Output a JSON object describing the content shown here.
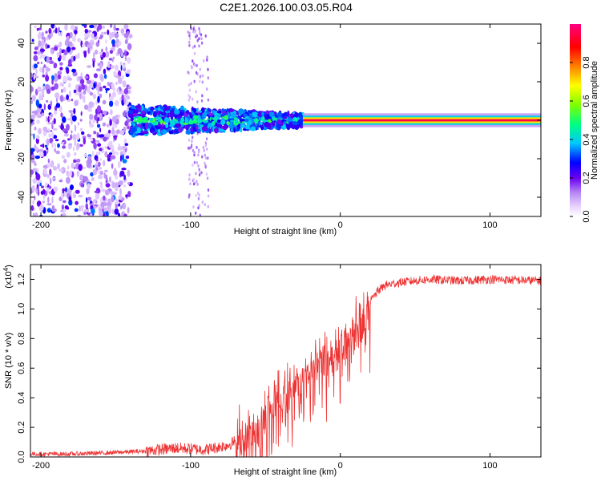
{
  "title": "C2E1.2026.100.03.05.R04",
  "chart_data": [
    {
      "type": "heatmap",
      "name": "spectrogram",
      "xlabel": "Height of straight line (km)",
      "ylabel": "Frequency (Hz)",
      "xlim": [
        -207,
        134
      ],
      "ylim": [
        -50,
        50
      ],
      "xticks": [
        -200,
        -100,
        0,
        100
      ],
      "yticks": [
        -40,
        -20,
        0,
        20,
        40
      ],
      "colorbar": {
        "label": "Normalized spectral amplitude",
        "range": [
          0.0,
          1.0
        ],
        "ticks": [
          0.0,
          0.2,
          0.4,
          0.6,
          0.8
        ],
        "colors": [
          "#ffffff",
          "#e9d5ff",
          "#b98cf5",
          "#6a00f0",
          "#0000ff",
          "#00c8ff",
          "#00ff7f",
          "#7fff00",
          "#ffff00",
          "#ff8000",
          "#ff0000",
          "#ff007f"
        ]
      },
      "features": [
        {
          "label": "scattered noise band",
          "x_range": [
            -207,
            -140
          ],
          "freq_range": [
            -50,
            50
          ],
          "amplitude": 0.15
        },
        {
          "label": "broad signal",
          "x_range": [
            -140,
            -25
          ],
          "freq_center": 0,
          "freq_halfwidth": 8,
          "amplitude": 0.35
        },
        {
          "label": "narrow tone",
          "x_range": [
            -25,
            134
          ],
          "freq_center": 0,
          "freq_halfwidth": 1.5,
          "amplitude": 0.95
        }
      ]
    },
    {
      "type": "line",
      "name": "snr",
      "xlabel": "Height of straight line (km)",
      "ylabel": "SNR (10 * v/v)",
      "y_multiplier_label": "(x10",
      "y_multiplier_exp": "4",
      "y_multiplier_close": ")",
      "xlim": [
        -207,
        134
      ],
      "ylim": [
        0,
        1.3
      ],
      "xticks": [
        -200,
        -100,
        0,
        100
      ],
      "yticks": [
        0.0,
        0.2,
        0.4,
        0.6,
        0.8,
        1.0,
        1.2
      ],
      "line_color": "#ee3333",
      "series": [
        {
          "name": "SNR",
          "x": [
            -207,
            -180,
            -150,
            -130,
            -110,
            -90,
            -75,
            -65,
            -55,
            -45,
            -40,
            -35,
            -30,
            -25,
            -20,
            -15,
            -10,
            -5,
            0,
            5,
            10,
            15,
            20,
            25,
            30,
            40,
            50,
            60,
            80,
            100,
            134
          ],
          "y": [
            0.02,
            0.02,
            0.03,
            0.04,
            0.06,
            0.05,
            0.08,
            0.14,
            0.25,
            0.38,
            0.42,
            0.5,
            0.52,
            0.58,
            0.6,
            0.65,
            0.75,
            0.72,
            0.78,
            0.85,
            0.9,
            0.98,
            1.05,
            1.12,
            1.16,
            1.18,
            1.19,
            1.2,
            1.19,
            1.2,
            1.19
          ]
        }
      ]
    }
  ]
}
